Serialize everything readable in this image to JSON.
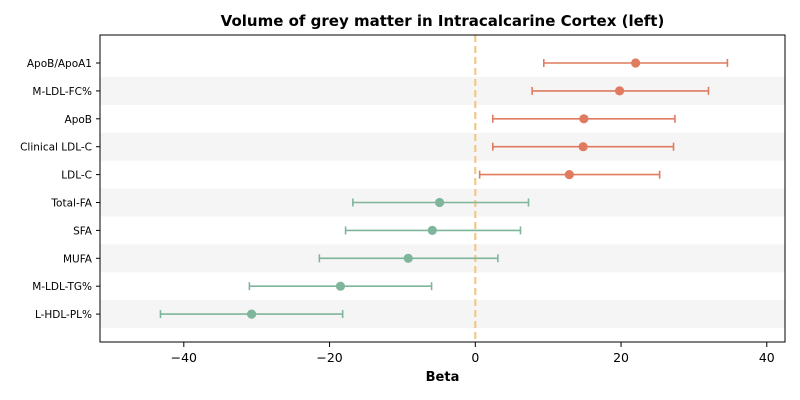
{
  "chart_data": {
    "type": "forest",
    "title": "Volume of grey matter in Intracalcarine Cortex (left)",
    "xlabel": "Beta",
    "ylabel": "",
    "xlim": [
      -51.5,
      42.5
    ],
    "xticks": [
      -40,
      -20,
      0,
      20,
      40
    ],
    "xtick_labels": [
      "−40",
      "−20",
      "0",
      "20",
      "40"
    ],
    "reference_line": {
      "x": 0,
      "style": "dashed",
      "color": "#f0c987"
    },
    "colors": {
      "positive": "#e07b5f",
      "negative": "#7fb59b",
      "band": "#f5f5f5"
    },
    "categories": [
      "ApoB/ApoA1",
      "M-LDL-FC%",
      "ApoB",
      "Clinical LDL-C",
      "LDL-C",
      "Total-FA",
      "SFA",
      "MUFA",
      "M-LDL-TG%",
      "L-HDL-PL%"
    ],
    "estimates": [
      22.0,
      19.8,
      14.9,
      14.8,
      12.9,
      -4.9,
      -5.9,
      -9.2,
      -18.5,
      -30.7
    ],
    "ci_lower": [
      9.4,
      7.8,
      2.4,
      2.4,
      0.6,
      -16.8,
      -17.8,
      -21.4,
      -31.0,
      -43.2
    ],
    "ci_upper": [
      34.6,
      32.0,
      27.4,
      27.2,
      25.3,
      7.3,
      6.2,
      3.1,
      -6.0,
      -18.2
    ],
    "grid": false,
    "legend": "none"
  }
}
